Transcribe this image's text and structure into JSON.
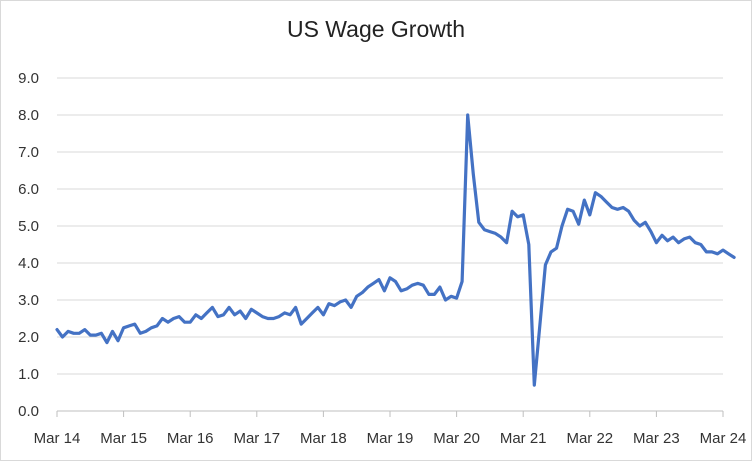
{
  "chart_data": {
    "type": "line",
    "title": "US Wage Growth",
    "xlabel": "",
    "ylabel": "",
    "ylim": [
      0,
      9
    ],
    "yticks": [
      "0.0",
      "1.0",
      "2.0",
      "3.0",
      "4.0",
      "5.0",
      "6.0",
      "7.0",
      "8.0",
      "9.0"
    ],
    "xticks": [
      "Mar 14",
      "Mar 15",
      "Mar 16",
      "Mar 17",
      "Mar 18",
      "Mar 19",
      "Mar 20",
      "Mar 21",
      "Mar 22",
      "Mar 23",
      "Mar 24"
    ],
    "grid": "horizontal",
    "legend": "none",
    "line_color": "#4472c4",
    "series": [
      {
        "x_start": "Mar 14",
        "x_step": "1 month",
        "values": [
          2.2,
          2.0,
          2.15,
          2.1,
          2.1,
          2.2,
          2.05,
          2.05,
          2.1,
          1.85,
          2.15,
          1.9,
          2.25,
          2.3,
          2.35,
          2.1,
          2.15,
          2.25,
          2.3,
          2.5,
          2.4,
          2.5,
          2.55,
          2.4,
          2.4,
          2.6,
          2.5,
          2.65,
          2.8,
          2.55,
          2.6,
          2.8,
          2.6,
          2.7,
          2.5,
          2.75,
          2.65,
          2.55,
          2.5,
          2.5,
          2.55,
          2.65,
          2.6,
          2.8,
          2.35,
          2.5,
          2.65,
          2.8,
          2.6,
          2.9,
          2.85,
          2.95,
          3.0,
          2.8,
          3.1,
          3.2,
          3.35,
          3.45,
          3.55,
          3.25,
          3.6,
          3.5,
          3.25,
          3.3,
          3.4,
          3.45,
          3.4,
          3.15,
          3.15,
          3.35,
          3.0,
          3.1,
          3.05,
          3.5,
          8.0,
          6.4,
          5.1,
          4.9,
          4.85,
          4.8,
          4.7,
          4.55,
          5.4,
          5.25,
          5.3,
          4.5,
          0.7,
          2.3,
          3.95,
          4.3,
          4.4,
          5.0,
          5.45,
          5.4,
          5.05,
          5.7,
          5.3,
          5.9,
          5.8,
          5.65,
          5.5,
          5.45,
          5.5,
          5.4,
          5.15,
          5.0,
          5.1,
          4.85,
          4.55,
          4.75,
          4.6,
          4.7,
          4.55,
          4.65,
          4.7,
          4.55,
          4.5,
          4.3,
          4.3,
          4.25,
          4.35,
          4.25,
          4.15
        ]
      }
    ]
  }
}
